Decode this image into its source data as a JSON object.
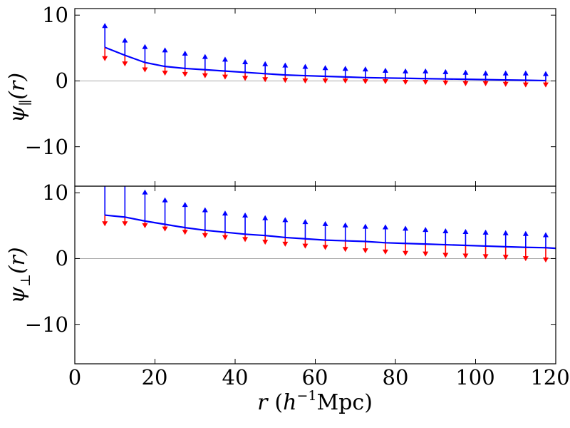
{
  "chart_data": [
    {
      "type": "line",
      "panel": "top",
      "ylabel": "ψ∥(r)",
      "ylabel_symbol": "ψ",
      "ylabel_subscript": "∥",
      "ylabel_arg": "(r)",
      "xlim": [
        0,
        120
      ],
      "ylim": [
        -16,
        11
      ],
      "yticks": [
        10,
        0,
        -10
      ],
      "ytick_labels": [
        "10",
        "0",
        "−10"
      ],
      "zero_line": true,
      "colors": {
        "line": "#0000ff",
        "upper": "#0000ff",
        "lower": "#ff0000",
        "zero": "#aaaaaa"
      },
      "x": [
        7.5,
        12.5,
        17.5,
        22.5,
        27.5,
        32.5,
        37.5,
        42.5,
        47.5,
        52.5,
        57.5,
        62.5,
        67.5,
        72.5,
        77.5,
        82.5,
        87.5,
        92.5,
        97.5,
        102.5,
        107.5,
        112.5,
        117.5
      ],
      "series": [
        {
          "values": [
            5.1,
            3.9,
            2.8,
            2.2,
            1.9,
            1.7,
            1.5,
            1.3,
            1.1,
            0.9,
            0.8,
            0.7,
            0.6,
            0.5,
            0.45,
            0.4,
            0.35,
            0.3,
            0.25,
            0.2,
            0.15,
            0.1,
            0.05
          ],
          "upper": [
            8.8,
            6.6,
            5.6,
            5.1,
            4.6,
            4.1,
            3.7,
            3.3,
            3.0,
            2.8,
            2.6,
            2.4,
            2.3,
            2.2,
            2.0,
            1.9,
            1.9,
            1.8,
            1.7,
            1.6,
            1.6,
            1.6,
            1.5
          ],
          "lower": [
            3.0,
            2.2,
            1.3,
            0.8,
            0.6,
            0.4,
            0.2,
            0.0,
            -0.2,
            -0.3,
            -0.4,
            -0.4,
            -0.4,
            -0.5,
            -0.5,
            -0.6,
            -0.6,
            -0.7,
            -0.8,
            -0.8,
            -0.9,
            -1.0,
            -1.0
          ]
        }
      ],
      "xticks": [
        0,
        20,
        40,
        60,
        80,
        100,
        120
      ],
      "show_xtick_labels": false
    },
    {
      "type": "line",
      "panel": "bottom",
      "ylabel": "ψ⊥(r)",
      "ylabel_symbol": "ψ",
      "ylabel_subscript": "⊥",
      "ylabel_arg": "(r)",
      "xlabel": "r (h⁻¹Mpc)",
      "xlabel_var": "r",
      "xlabel_open": "(",
      "xlabel_h": "h",
      "xlabel_exp": "−1",
      "xlabel_unit": "Mpc)",
      "xlim": [
        0,
        120
      ],
      "ylim": [
        -16,
        11
      ],
      "yticks": [
        10,
        0,
        -10
      ],
      "ytick_labels": [
        "10",
        "0",
        "−10"
      ],
      "xticks": [
        0,
        20,
        40,
        60,
        80,
        100,
        120
      ],
      "xtick_labels": [
        "0",
        "20",
        "40",
        "60",
        "80",
        "100",
        "120"
      ],
      "zero_line": true,
      "colors": {
        "line": "#0000ff",
        "upper": "#0000ff",
        "lower": "#ff0000",
        "zero": "#aaaaaa"
      },
      "x": [
        7.5,
        12.5,
        17.5,
        22.5,
        27.5,
        32.5,
        37.5,
        42.5,
        47.5,
        52.5,
        57.5,
        62.5,
        67.5,
        72.5,
        77.5,
        82.5,
        87.5,
        92.5,
        97.5,
        102.5,
        107.5,
        112.5,
        117.5
      ],
      "x_line_end": 120,
      "y_line_end": 1.55,
      "series": [
        {
          "values": [
            6.6,
            6.3,
            5.7,
            5.2,
            4.7,
            4.3,
            4.0,
            3.7,
            3.5,
            3.2,
            3.0,
            2.8,
            2.7,
            2.6,
            2.4,
            2.3,
            2.2,
            2.1,
            2.0,
            1.9,
            1.8,
            1.7,
            1.65
          ],
          "upper": [
            11.5,
            11.5,
            10.5,
            9.3,
            8.6,
            7.8,
            7.3,
            7.0,
            6.6,
            6.3,
            6.0,
            5.7,
            5.5,
            5.3,
            5.2,
            5.0,
            4.8,
            4.6,
            4.5,
            4.4,
            4.3,
            4.2,
            4.0
          ],
          "lower": [
            4.9,
            4.9,
            4.6,
            4.1,
            3.6,
            3.1,
            2.8,
            2.5,
            2.1,
            1.8,
            1.5,
            1.3,
            1.0,
            0.8,
            0.6,
            0.4,
            0.3,
            0.1,
            0.0,
            -0.1,
            -0.2,
            -0.4,
            -0.6
          ]
        }
      ]
    }
  ]
}
